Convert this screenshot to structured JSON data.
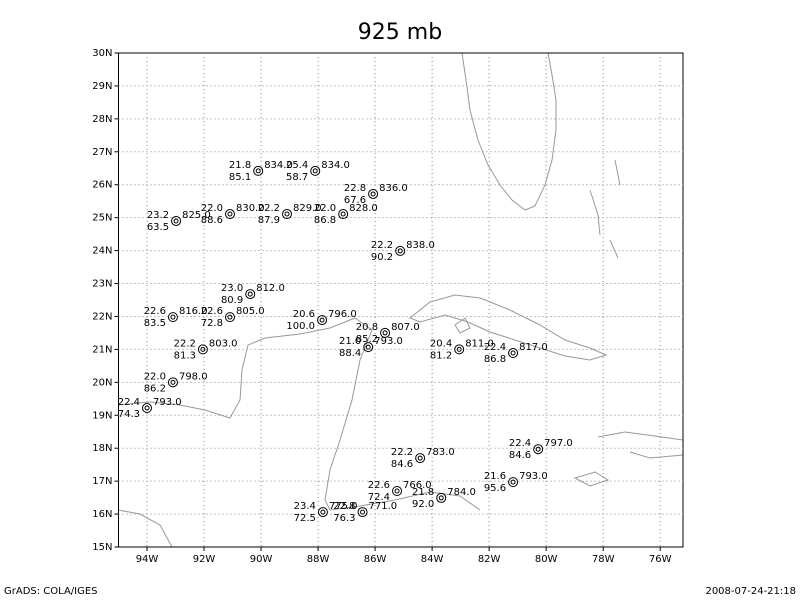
{
  "chart_data": {
    "type": "station-map",
    "title": "925 mb",
    "xlim": [
      -95,
      -75.2
    ],
    "ylim": [
      15,
      30
    ],
    "grid": true,
    "xticks": [
      {
        "value": -94,
        "label": "94W"
      },
      {
        "value": -92,
        "label": "92W"
      },
      {
        "value": -90,
        "label": "90W"
      },
      {
        "value": -88,
        "label": "88W"
      },
      {
        "value": -86,
        "label": "86W"
      },
      {
        "value": -84,
        "label": "84W"
      },
      {
        "value": -82,
        "label": "82W"
      },
      {
        "value": -80,
        "label": "80W"
      },
      {
        "value": -78,
        "label": "78W"
      },
      {
        "value": -76,
        "label": "76W"
      }
    ],
    "yticks": [
      {
        "value": 15,
        "label": "15N"
      },
      {
        "value": 16,
        "label": "16N"
      },
      {
        "value": 17,
        "label": "17N"
      },
      {
        "value": 18,
        "label": "18N"
      },
      {
        "value": 19,
        "label": "19N"
      },
      {
        "value": 20,
        "label": "20N"
      },
      {
        "value": 21,
        "label": "21N"
      },
      {
        "value": 22,
        "label": "22N"
      },
      {
        "value": 23,
        "label": "23N"
      },
      {
        "value": 24,
        "label": "24N"
      },
      {
        "value": 25,
        "label": "25N"
      },
      {
        "value": 26,
        "label": "26N"
      },
      {
        "value": 27,
        "label": "27N"
      },
      {
        "value": 28,
        "label": "28N"
      },
      {
        "value": 29,
        "label": "29N"
      },
      {
        "value": 30,
        "label": "30N"
      }
    ],
    "stations": [
      {
        "lon": -90.1,
        "lat": 26.42,
        "temperature": "21.8",
        "humidity": "85.1",
        "pressure": "834.0"
      },
      {
        "lon": -88.1,
        "lat": 26.42,
        "temperature": "25.4",
        "humidity": "58.7",
        "pressure": "834.0"
      },
      {
        "lon": -86.07,
        "lat": 25.72,
        "temperature": "22.8",
        "humidity": "67.6",
        "pressure": "836.0"
      },
      {
        "lon": -92.98,
        "lat": 24.9,
        "temperature": "23.2",
        "humidity": "63.5",
        "pressure": "825.0"
      },
      {
        "lon": -91.09,
        "lat": 25.11,
        "temperature": "22.0",
        "humidity": "88.6",
        "pressure": "830.0"
      },
      {
        "lon": -89.09,
        "lat": 25.11,
        "temperature": "22.2",
        "humidity": "87.9",
        "pressure": "829.0"
      },
      {
        "lon": -87.12,
        "lat": 25.11,
        "temperature": "22.0",
        "humidity": "86.8",
        "pressure": "828.0"
      },
      {
        "lon": -85.12,
        "lat": 23.99,
        "temperature": "22.2",
        "humidity": "90.2",
        "pressure": "838.0"
      },
      {
        "lon": -90.38,
        "lat": 22.68,
        "temperature": "23.0",
        "humidity": "80.9",
        "pressure": "812.0"
      },
      {
        "lon": -93.09,
        "lat": 21.98,
        "temperature": "22.6",
        "humidity": "83.5",
        "pressure": "816.0"
      },
      {
        "lon": -91.09,
        "lat": 21.98,
        "temperature": "22.6",
        "humidity": "72.8",
        "pressure": "805.0"
      },
      {
        "lon": -87.86,
        "lat": 21.89,
        "temperature": "20.6",
        "humidity": "100.0",
        "pressure": "796.0"
      },
      {
        "lon": -85.65,
        "lat": 21.5,
        "temperature": "20.8",
        "humidity": "85.2",
        "pressure": "807.0"
      },
      {
        "lon": -86.24,
        "lat": 21.07,
        "temperature": "21.0",
        "humidity": "88.4",
        "pressure": "793.0"
      },
      {
        "lon": -92.04,
        "lat": 21.0,
        "temperature": "22.2",
        "humidity": "81.3",
        "pressure": "803.0"
      },
      {
        "lon": -83.05,
        "lat": 21.0,
        "temperature": "20.4",
        "humidity": "81.2",
        "pressure": "811.0"
      },
      {
        "lon": -81.16,
        "lat": 20.89,
        "temperature": "22.4",
        "humidity": "86.8",
        "pressure": "817.0"
      },
      {
        "lon": -93.09,
        "lat": 20.0,
        "temperature": "22.0",
        "humidity": "86.2",
        "pressure": "798.0"
      },
      {
        "lon": -94.0,
        "lat": 19.22,
        "temperature": "22.4",
        "humidity": "74.3",
        "pressure": "793.0"
      },
      {
        "lon": -80.28,
        "lat": 17.97,
        "temperature": "22.4",
        "humidity": "84.6",
        "pressure": "797.0"
      },
      {
        "lon": -84.42,
        "lat": 17.7,
        "temperature": "22.2",
        "humidity": "84.6",
        "pressure": "783.0"
      },
      {
        "lon": -81.16,
        "lat": 16.97,
        "temperature": "21.6",
        "humidity": "95.6",
        "pressure": "793.0"
      },
      {
        "lon": -85.23,
        "lat": 16.7,
        "temperature": "22.6",
        "humidity": "72.4",
        "pressure": "766.0"
      },
      {
        "lon": -83.68,
        "lat": 16.49,
        "temperature": "21.8",
        "humidity": "92.0",
        "pressure": "784.0"
      },
      {
        "lon": -87.83,
        "lat": 16.06,
        "temperature": "23.4",
        "humidity": "72.5",
        "pressure": "775.0"
      },
      {
        "lon": -86.44,
        "lat": 16.06,
        "temperature": "22.8",
        "humidity": "76.3",
        "pressure": "771.0"
      }
    ]
  },
  "footer": {
    "left": "GrADS: COLA/IGES",
    "right": "2008-07-24-21:18"
  }
}
